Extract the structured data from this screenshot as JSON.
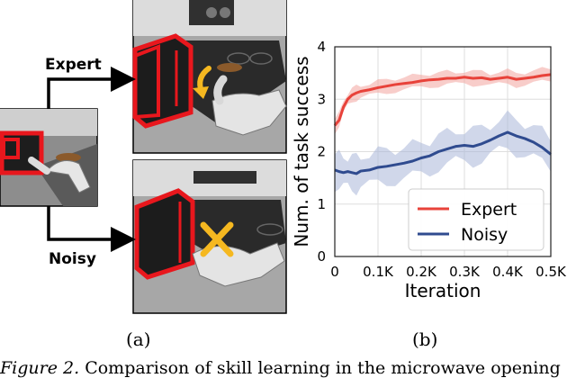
{
  "panel_a": {
    "branch_top_label": "Expert",
    "branch_bottom_label": "Noisy",
    "sublabel": "(a)",
    "colors": {
      "highlight": "#e8171d",
      "cross": "#f5b820",
      "arrow": "#000000"
    },
    "icons": [
      "curved-arrow-icon",
      "cross-icon"
    ]
  },
  "panel_b": {
    "sublabel": "(b)"
  },
  "chart_data": {
    "type": "line",
    "xlabel": "Iteration",
    "ylabel": "Num. of task success",
    "xlim": [
      0,
      500
    ],
    "ylim": [
      0,
      4
    ],
    "x_ticks": [
      0,
      100,
      200,
      300,
      400,
      500
    ],
    "x_tick_labels": [
      "0",
      "0.1K",
      "0.2K",
      "0.3K",
      "0.4K",
      "0.5K"
    ],
    "y_ticks": [
      0,
      1,
      2,
      3,
      4
    ],
    "y_tick_labels": [
      "0",
      "1",
      "2",
      "3",
      "4"
    ],
    "grid": true,
    "legend_position": "lower-right",
    "x": [
      0,
      10,
      20,
      30,
      40,
      50,
      60,
      80,
      100,
      120,
      140,
      160,
      180,
      200,
      220,
      240,
      260,
      280,
      300,
      320,
      340,
      360,
      380,
      400,
      420,
      440,
      460,
      480,
      500
    ],
    "series": [
      {
        "name": "Expert",
        "color": "#e8423a",
        "band_color": "#f2a49f",
        "values": [
          2.5,
          2.6,
          2.85,
          3.0,
          3.08,
          3.12,
          3.15,
          3.18,
          3.22,
          3.25,
          3.28,
          3.3,
          3.32,
          3.35,
          3.37,
          3.38,
          3.4,
          3.4,
          3.42,
          3.4,
          3.41,
          3.38,
          3.4,
          3.42,
          3.38,
          3.4,
          3.42,
          3.45,
          3.47
        ],
        "spread": 0.12
      },
      {
        "name": "Noisy",
        "color": "#2f4b8f",
        "band_color": "#a9b7d8",
        "values": [
          1.65,
          1.62,
          1.6,
          1.62,
          1.6,
          1.58,
          1.63,
          1.65,
          1.7,
          1.72,
          1.75,
          1.78,
          1.82,
          1.88,
          1.92,
          2.0,
          2.05,
          2.1,
          2.12,
          2.1,
          2.15,
          2.22,
          2.3,
          2.37,
          2.3,
          2.25,
          2.18,
          2.08,
          1.95
        ],
        "spread": 0.3
      }
    ]
  },
  "caption": {
    "figure_number": "Figure 2.",
    "text": " Comparison of skill learning in the microwave opening"
  }
}
